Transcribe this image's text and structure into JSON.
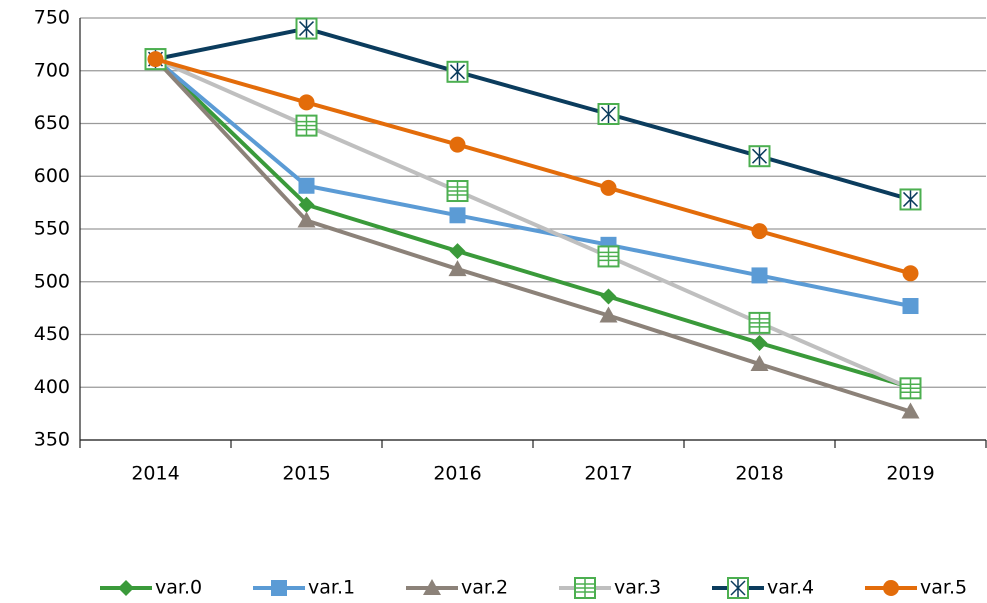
{
  "chart_data": {
    "type": "line",
    "categories": [
      "2014",
      "2015",
      "2016",
      "2017",
      "2018",
      "2019"
    ],
    "series": [
      {
        "name": "var.0",
        "color": "#3a9a3a",
        "marker": "diamond",
        "values": [
          711,
          573,
          529,
          486,
          442,
          400
        ]
      },
      {
        "name": "var.1",
        "color": "#5b9bd5",
        "marker": "square",
        "values": [
          711,
          591,
          563,
          535,
          506,
          477
        ]
      },
      {
        "name": "var.2",
        "color": "#8c8279",
        "marker": "triangle",
        "values": [
          711,
          558,
          512,
          468,
          422,
          377
        ]
      },
      {
        "name": "var.3",
        "color": "#bfbfbf",
        "marker": "grid-square",
        "marker_color": "#4caf50",
        "values": [
          711,
          648,
          586,
          524,
          461,
          399
        ]
      },
      {
        "name": "var.4",
        "color": "#0b3c5d",
        "marker": "cross-square",
        "marker_color": "#4caf50",
        "values": [
          711,
          740,
          699,
          659,
          619,
          578
        ]
      },
      {
        "name": "var.5",
        "color": "#e36c0a",
        "marker": "circle",
        "values": [
          711,
          670,
          630,
          589,
          548,
          508
        ]
      }
    ],
    "ylim": [
      350,
      750
    ],
    "yticks": [
      350,
      400,
      450,
      500,
      550,
      600,
      650,
      700,
      750
    ],
    "grid": true,
    "legend": "bottom"
  }
}
